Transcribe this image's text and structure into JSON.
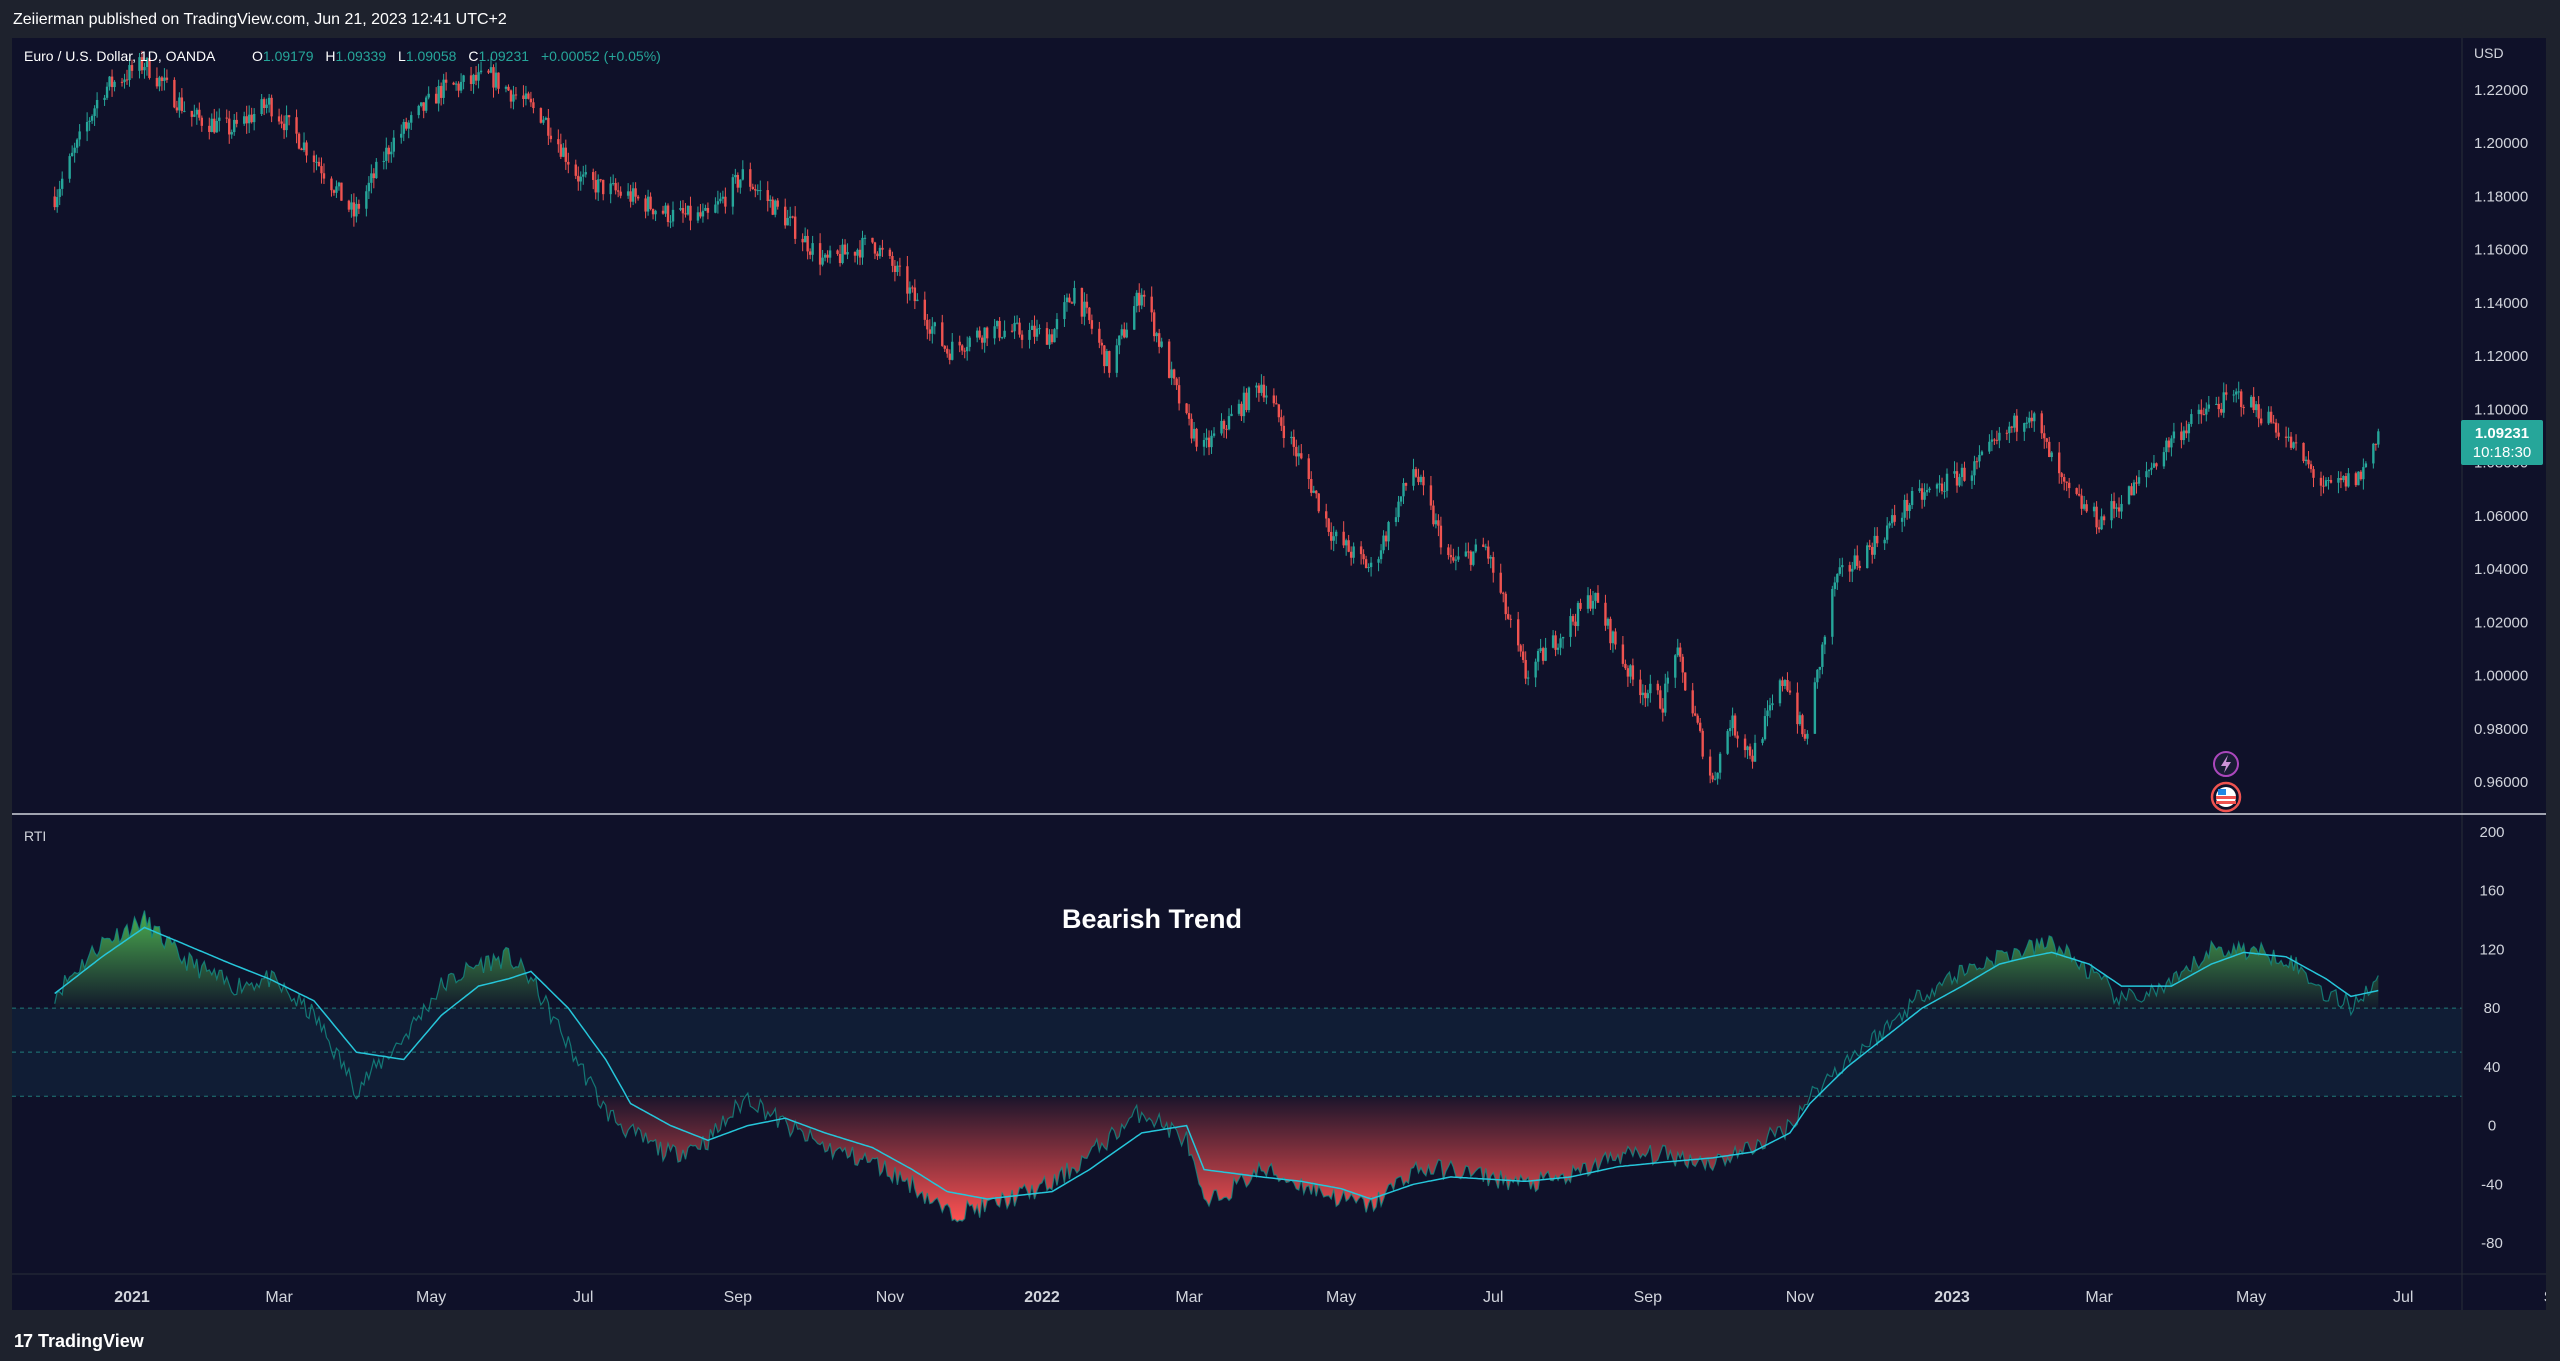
{
  "header": {
    "published_line": "Zeiierman published on TradingView.com, Jun 21, 2023 12:41 UTC+2"
  },
  "footer": {
    "brand": "TradingView",
    "logo_mark": "17"
  },
  "colors": {
    "background": "#0f1129",
    "up": "#26a69a",
    "down": "#ef5350",
    "rti_bull_fill": "#4caf50",
    "rti_bear_fill": "#ff5252",
    "signal_line": "#26c6da",
    "price_tag": "#26a69a"
  },
  "price_pane": {
    "symbol_line": "Euro / U.S. Dollar, 1D, OANDA",
    "ohlc": [
      {
        "label": "O",
        "value": "1.09179"
      },
      {
        "label": "H",
        "value": "1.09339"
      },
      {
        "label": "L",
        "value": "1.09058"
      },
      {
        "label": "C",
        "value": "1.09231"
      }
    ],
    "change": "+0.00052 (+0.05%)",
    "currency": "USD",
    "last_price": "1.09231",
    "countdown": "10:18:30",
    "y_ticks": [
      "1.22000",
      "1.20000",
      "1.18000",
      "1.16000",
      "1.14000",
      "1.12000",
      "1.10000",
      "1.08000",
      "1.06000",
      "1.04000",
      "1.02000",
      "1.00000",
      "0.98000",
      "0.96000"
    ],
    "icons": [
      "lightning-icon",
      "us-flag-icon"
    ]
  },
  "rti_pane": {
    "title": "RTI",
    "annotation": "Bearish Trend",
    "y_ticks": [
      "200",
      "160",
      "120",
      "80",
      "40",
      "0",
      "-40",
      "-80"
    ],
    "levels": [
      80,
      50,
      20
    ]
  },
  "x_axis": {
    "ticks": [
      "2021",
      "Mar",
      "May",
      "Jul",
      "Sep",
      "Nov",
      "2022",
      "Mar",
      "May",
      "Jul",
      "Sep",
      "Nov",
      "2023",
      "Mar",
      "May",
      "Jul",
      "Sep"
    ]
  },
  "chart_data": [
    {
      "type": "line",
      "title": "Euro / U.S. Dollar, 1D, OANDA",
      "note": "Daily candlesticks approximated by closing-price anchors",
      "x": [
        "2020-12-01",
        "2020-12-20",
        "2021-01-06",
        "2021-01-25",
        "2021-02-10",
        "2021-02-25",
        "2021-03-15",
        "2021-03-31",
        "2021-04-15",
        "2021-05-05",
        "2021-05-25",
        "2021-06-15",
        "2021-06-30",
        "2021-07-20",
        "2021-08-05",
        "2021-08-20",
        "2021-09-03",
        "2021-09-20",
        "2021-10-06",
        "2021-10-25",
        "2021-11-05",
        "2021-11-24",
        "2021-12-10",
        "2022-01-05",
        "2022-01-14",
        "2022-01-28",
        "2022-02-10",
        "2022-02-28",
        "2022-03-07",
        "2022-03-30",
        "2022-04-15",
        "2022-04-28",
        "2022-05-13",
        "2022-05-30",
        "2022-06-14",
        "2022-06-28",
        "2022-07-14",
        "2022-08-10",
        "2022-08-26",
        "2022-09-07",
        "2022-09-12",
        "2022-09-27",
        "2022-10-04",
        "2022-10-13",
        "2022-10-26",
        "2022-11-03",
        "2022-11-15",
        "2022-12-01",
        "2022-12-15",
        "2023-01-10",
        "2023-02-01",
        "2023-02-15",
        "2023-03-01",
        "2023-03-15",
        "2023-03-31",
        "2023-04-14",
        "2023-04-26",
        "2023-05-10",
        "2023-05-31",
        "2023-06-14",
        "2023-06-21"
      ],
      "y": [
        1.18,
        1.22,
        1.23,
        1.21,
        1.205,
        1.215,
        1.195,
        1.173,
        1.2,
        1.22,
        1.225,
        1.21,
        1.186,
        1.18,
        1.173,
        1.172,
        1.188,
        1.172,
        1.155,
        1.163,
        1.15,
        1.122,
        1.13,
        1.128,
        1.145,
        1.116,
        1.145,
        1.095,
        1.085,
        1.11,
        1.08,
        1.052,
        1.04,
        1.078,
        1.042,
        1.048,
        1.0,
        1.03,
        0.998,
        0.99,
        1.01,
        0.96,
        0.983,
        0.97,
        1.0,
        0.975,
        1.035,
        1.05,
        1.065,
        1.078,
        1.1,
        1.07,
        1.058,
        1.07,
        1.09,
        1.1,
        1.105,
        1.095,
        1.07,
        1.075,
        1.092
      ],
      "ylim": [
        0.95,
        1.235
      ],
      "last": 1.09231,
      "currency": "USD"
    },
    {
      "type": "area",
      "title": "RTI",
      "x": [
        "2020-12-01",
        "2020-12-20",
        "2021-01-06",
        "2021-01-20",
        "2021-02-10",
        "2021-02-25",
        "2021-03-15",
        "2021-04-01",
        "2021-04-20",
        "2021-05-05",
        "2021-05-20",
        "2021-06-01",
        "2021-06-10",
        "2021-06-25",
        "2021-07-10",
        "2021-07-20",
        "2021-08-05",
        "2021-08-20",
        "2021-09-05",
        "2021-09-20",
        "2021-10-06",
        "2021-10-25",
        "2021-11-10",
        "2021-11-24",
        "2021-12-10",
        "2022-01-05",
        "2022-01-20",
        "2022-02-10",
        "2022-02-28",
        "2022-03-07",
        "2022-03-30",
        "2022-04-15",
        "2022-05-01",
        "2022-05-13",
        "2022-05-30",
        "2022-06-14",
        "2022-07-14",
        "2022-08-01",
        "2022-08-20",
        "2022-09-07",
        "2022-09-27",
        "2022-10-13",
        "2022-10-28",
        "2022-11-05",
        "2022-11-20",
        "2022-12-05",
        "2022-12-20",
        "2023-01-05",
        "2023-01-20",
        "2023-02-01",
        "2023-02-10",
        "2023-02-25",
        "2023-03-10",
        "2023-03-30",
        "2023-04-15",
        "2023-04-28",
        "2023-05-15",
        "2023-05-31",
        "2023-06-10",
        "2023-06-21"
      ],
      "series": [
        {
          "name": "RTI",
          "values": [
            90,
            125,
            140,
            115,
            95,
            100,
            75,
            25,
            60,
            95,
            110,
            115,
            100,
            55,
            10,
            -5,
            -20,
            -10,
            20,
            0,
            -15,
            -25,
            -40,
            -60,
            -55,
            -40,
            -20,
            10,
            -10,
            -55,
            -30,
            -40,
            -50,
            -55,
            -30,
            -30,
            -40,
            -35,
            -20,
            -20,
            -25,
            -15,
            0,
            20,
            45,
            65,
            90,
            105,
            115,
            120,
            125,
            105,
            85,
            95,
            120,
            120,
            115,
            90,
            82,
            100
          ]
        },
        {
          "name": "Signal",
          "values": [
            90,
            115,
            135,
            125,
            110,
            100,
            85,
            50,
            45,
            75,
            95,
            100,
            105,
            80,
            45,
            15,
            0,
            -10,
            0,
            5,
            -5,
            -15,
            -30,
            -45,
            -50,
            -45,
            -30,
            -5,
            0,
            -30,
            -35,
            -38,
            -43,
            -50,
            -40,
            -35,
            -38,
            -35,
            -28,
            -25,
            -22,
            -18,
            -5,
            15,
            40,
            60,
            80,
            95,
            110,
            115,
            118,
            110,
            95,
            95,
            110,
            118,
            115,
            100,
            88,
            92
          ]
        }
      ],
      "levels": [
        80,
        50,
        20
      ],
      "ylim": [
        -100,
        200
      ],
      "annotation": "Bearish Trend"
    }
  ]
}
